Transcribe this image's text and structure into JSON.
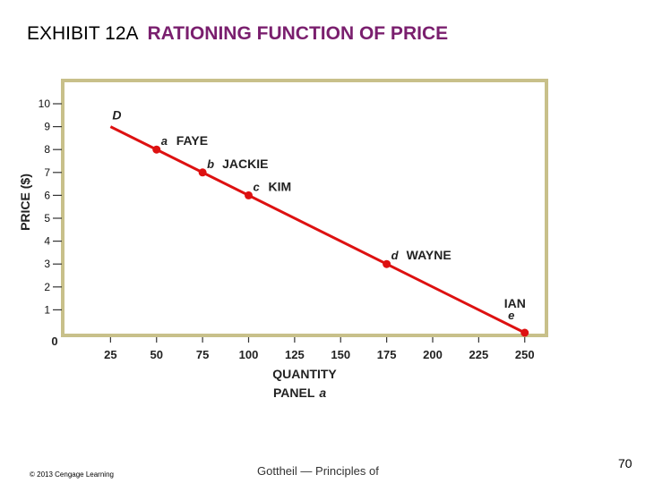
{
  "header": {
    "exhibit": "EXHIBIT 12A",
    "title": "RATIONING FUNCTION OF PRICE"
  },
  "footer": {
    "copyright": "© 2013 Cengage Learning",
    "source": "Gottheil — Principles of",
    "page_number": "70"
  },
  "chart_data": {
    "type": "line",
    "ylabel": "PRICE ($)",
    "xlabel": "QUANTITY",
    "panel_label": "PANEL",
    "panel_letter": "a",
    "x_ticks": [
      25,
      50,
      75,
      100,
      125,
      150,
      175,
      200,
      225,
      250
    ],
    "y_ticks": [
      1,
      2,
      3,
      4,
      5,
      6,
      7,
      8,
      9,
      10
    ],
    "origin_label": "0",
    "xlim": [
      0,
      250
    ],
    "ylim": [
      0,
      10
    ],
    "series": [
      {
        "name": "D",
        "x": [
          25,
          250
        ],
        "y": [
          9,
          0
        ]
      }
    ],
    "points": [
      {
        "letter": "a",
        "name": "FAYE",
        "x": 50,
        "y": 8
      },
      {
        "letter": "b",
        "name": "JACKIE",
        "x": 75,
        "y": 7
      },
      {
        "letter": "c",
        "name": "KIM",
        "x": 100,
        "y": 6
      },
      {
        "letter": "d",
        "name": "WAYNE",
        "x": 175,
        "y": 3
      },
      {
        "letter": "e",
        "name": "IAN",
        "x": 250,
        "y": 0
      }
    ],
    "colors": {
      "line": "#dd1111",
      "point": "#dd1111",
      "frame": "#c8c08a",
      "text": "#222222"
    }
  }
}
